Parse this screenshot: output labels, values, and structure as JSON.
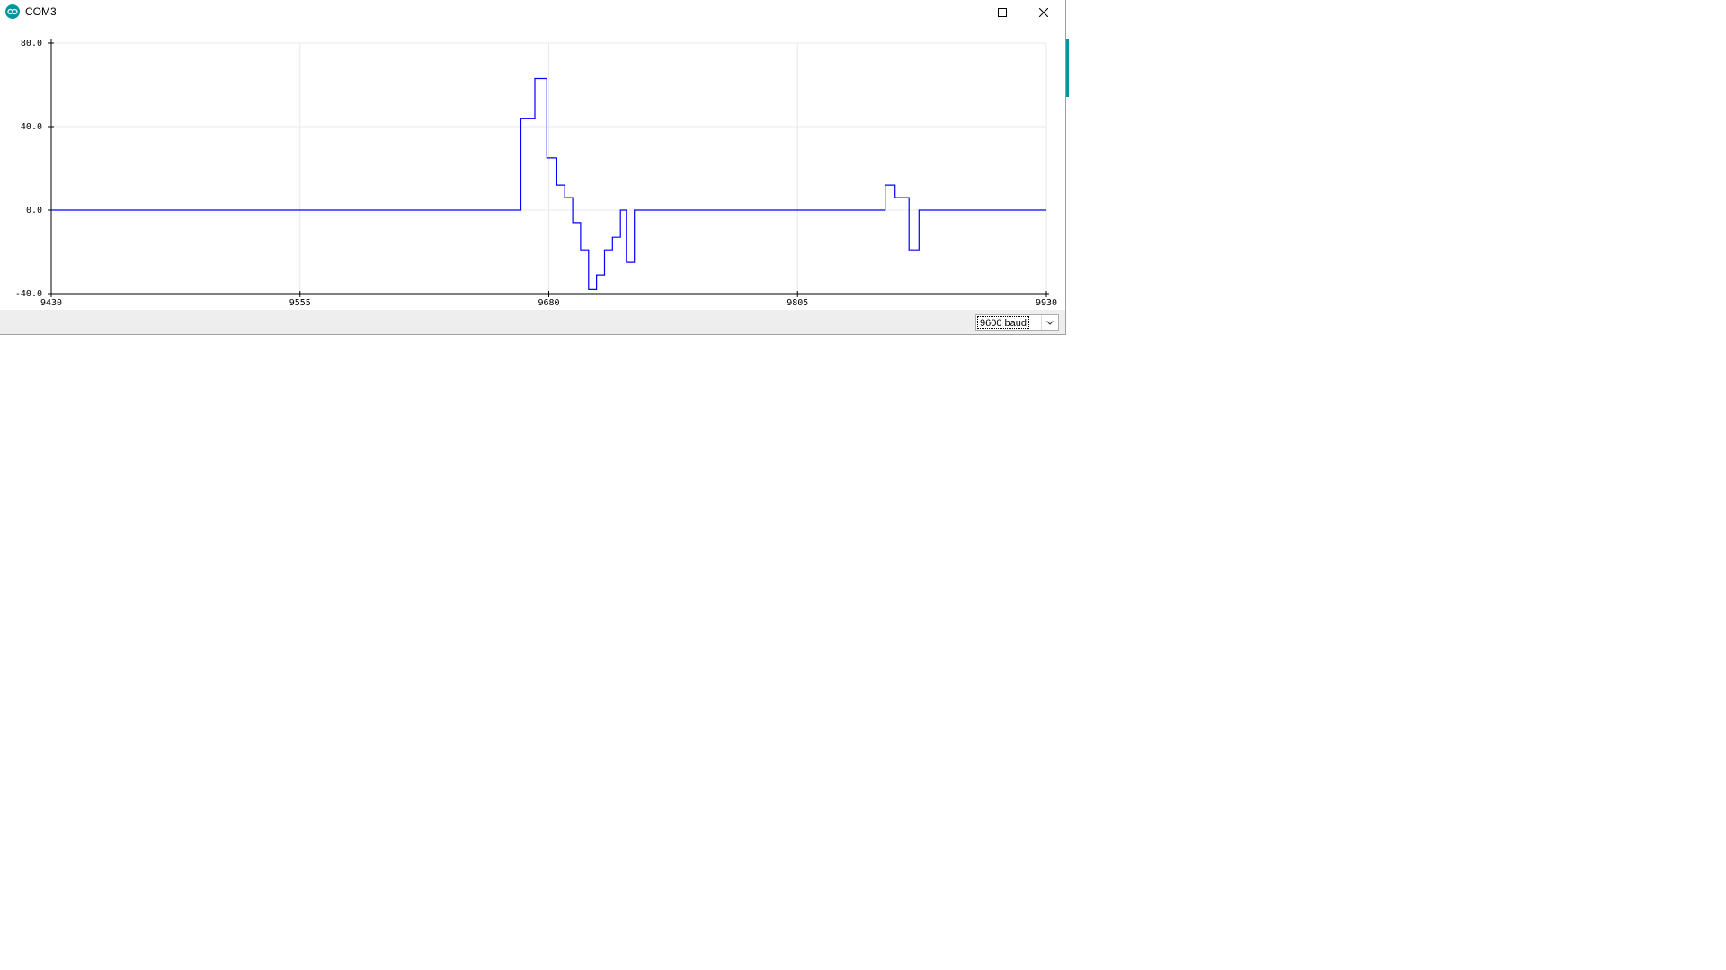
{
  "window": {
    "title": "COM3",
    "app_icon": "arduino-icon",
    "controls": {
      "minimize": "minimize-icon",
      "maximize": "maximize-icon",
      "close": "close-icon"
    }
  },
  "plotter": {
    "line_color": "#0000ff",
    "grid_color": "#e8e8e8"
  },
  "chart_data": {
    "type": "line",
    "title": "",
    "xlabel": "",
    "ylabel": "",
    "xlim": [
      9430,
      9930
    ],
    "ylim": [
      -40,
      80
    ],
    "x_ticks": [
      "9430",
      "9555",
      "9680",
      "9805",
      "9930"
    ],
    "y_ticks": [
      "80.0",
      "40.0",
      "0.0",
      "-40.0"
    ],
    "grid": true,
    "series": [
      {
        "step": true,
        "x": [
          9430,
          9666,
          9666,
          9673,
          9673,
          9679,
          9679,
          9684,
          9684,
          9688,
          9688,
          9692,
          9692,
          9696,
          9696,
          9700,
          9700,
          9704,
          9704,
          9708,
          9708,
          9712,
          9712,
          9716,
          9716,
          9719,
          9719,
          9723,
          9723,
          9730,
          9730,
          9735,
          9735,
          9849,
          9849,
          9854,
          9854,
          9861,
          9861,
          9866,
          9866,
          9930
        ],
        "y": [
          0,
          0,
          44,
          44,
          63,
          63,
          25,
          25,
          12,
          12,
          6,
          6,
          -6,
          -6,
          -19,
          -19,
          -38,
          -38,
          -31,
          -31,
          -19,
          -19,
          -13,
          -13,
          0,
          0,
          -25,
          -25,
          0,
          0,
          0,
          0,
          0,
          0,
          12,
          12,
          6,
          6,
          -19,
          -19,
          0,
          0
        ]
      }
    ]
  },
  "status": {
    "baud_rate": "9600 baud",
    "dropdown_icon": "chevron-down-icon"
  }
}
